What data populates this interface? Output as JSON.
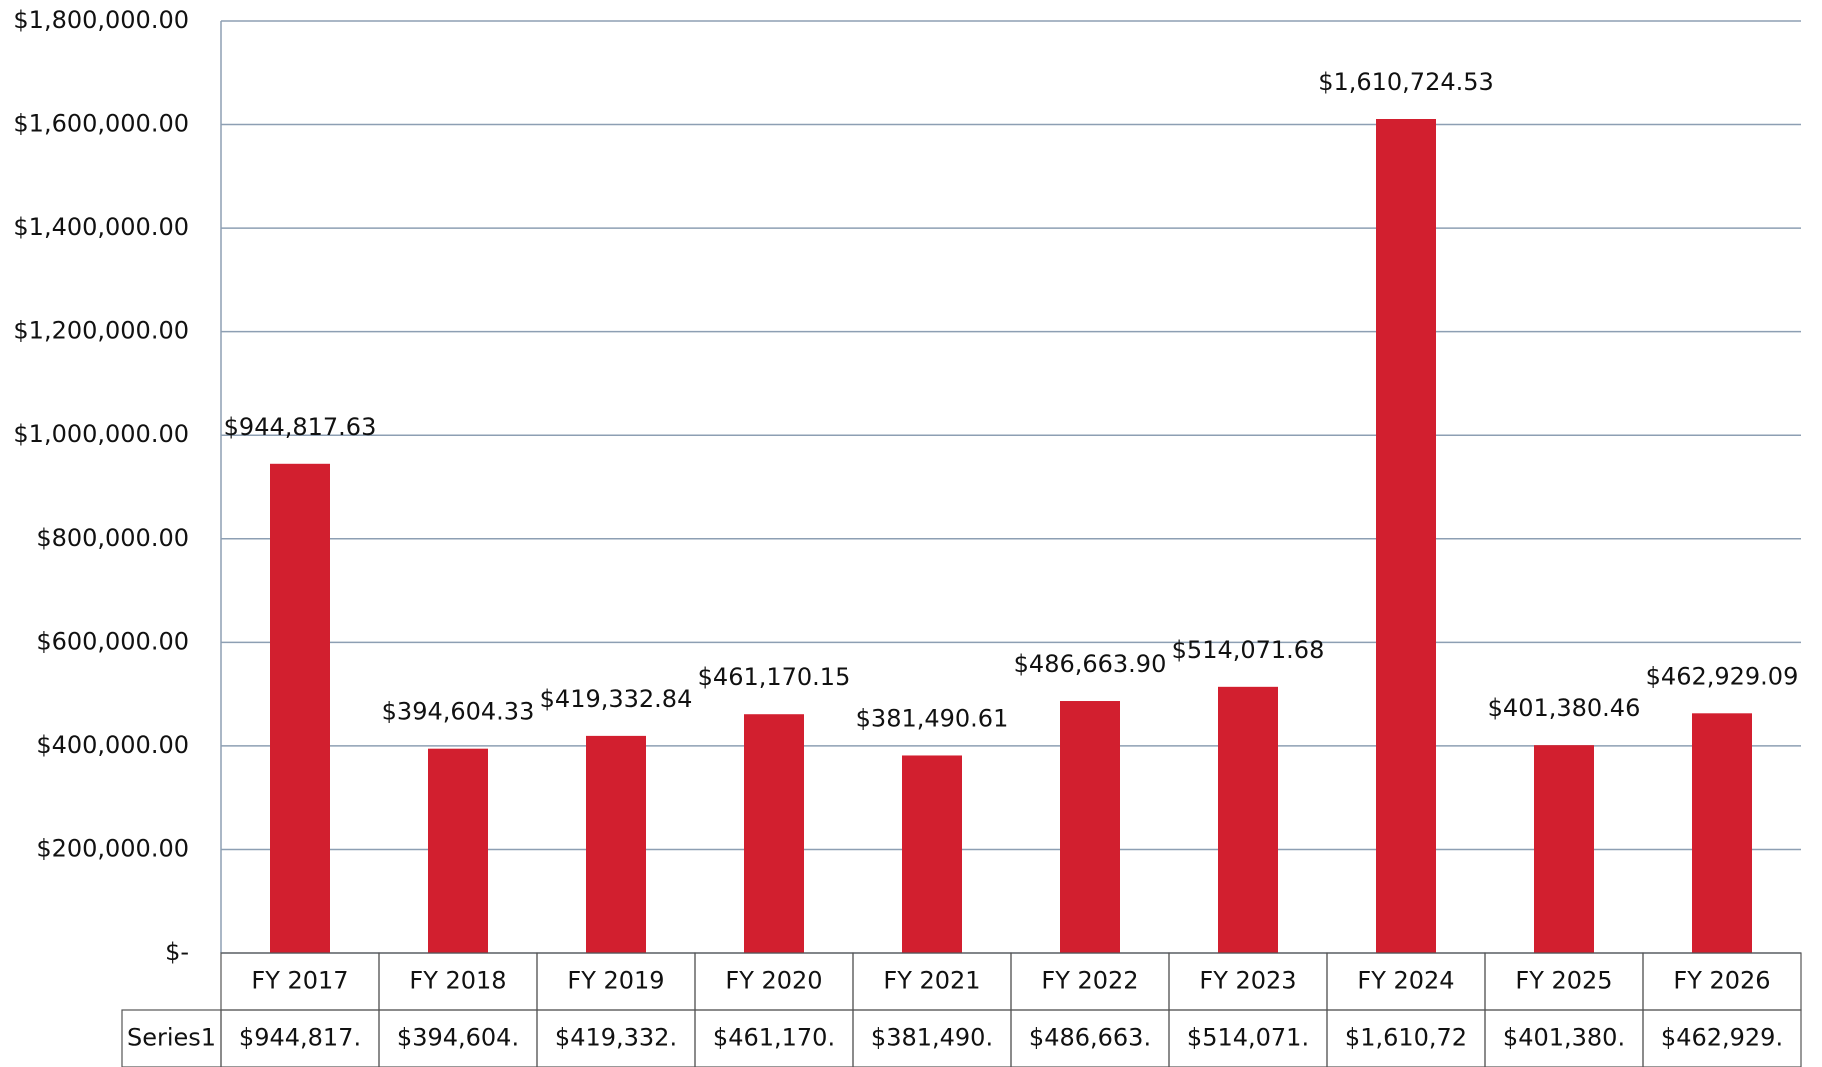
{
  "chart_data": {
    "type": "bar",
    "categories": [
      "FY 2017",
      "FY 2018",
      "FY 2019",
      "FY 2020",
      "FY 2021",
      "FY 2022",
      "FY 2023",
      "FY 2024",
      "FY 2025",
      "FY 2026"
    ],
    "series": [
      {
        "name": "Series1",
        "color": "#d21f2f",
        "values": [
          944817.63,
          394604.33,
          419332.84,
          461170.15,
          381490.61,
          486663.9,
          514071.68,
          1610724.53,
          401380.46,
          462929.09
        ],
        "value_labels": [
          "$944,817.63",
          "$394,604.33",
          "$419,332.84",
          "$461,170.15",
          "$381,490.61",
          "$486,663.90",
          "$514,071.68",
          "$1,610,724.53",
          "$401,380.46",
          "$462,929.09"
        ],
        "table_labels": [
          "$944,817.",
          "$394,604.",
          "$419,332.",
          "$461,170.",
          "$381,490.",
          "$486,663.",
          "$514,071.",
          "$1,610,72",
          "$401,380.",
          "$462,929."
        ]
      }
    ],
    "ylim": [
      0,
      1800000
    ],
    "yticks": [
      {
        "value": 0,
        "label": "$-"
      },
      {
        "value": 200000,
        "label": "$200,000.00"
      },
      {
        "value": 400000,
        "label": "$400,000.00"
      },
      {
        "value": 600000,
        "label": "$600,000.00"
      },
      {
        "value": 800000,
        "label": "$800,000.00"
      },
      {
        "value": 1000000,
        "label": "$1,000,000.00"
      },
      {
        "value": 1200000,
        "label": "$1,200,000.00"
      },
      {
        "value": 1400000,
        "label": "$1,400,000.00"
      },
      {
        "value": 1600000,
        "label": "$1,600,000.00"
      },
      {
        "value": 1800000,
        "label": "$1,800,000.00"
      }
    ],
    "grid": true,
    "data_table": true
  }
}
